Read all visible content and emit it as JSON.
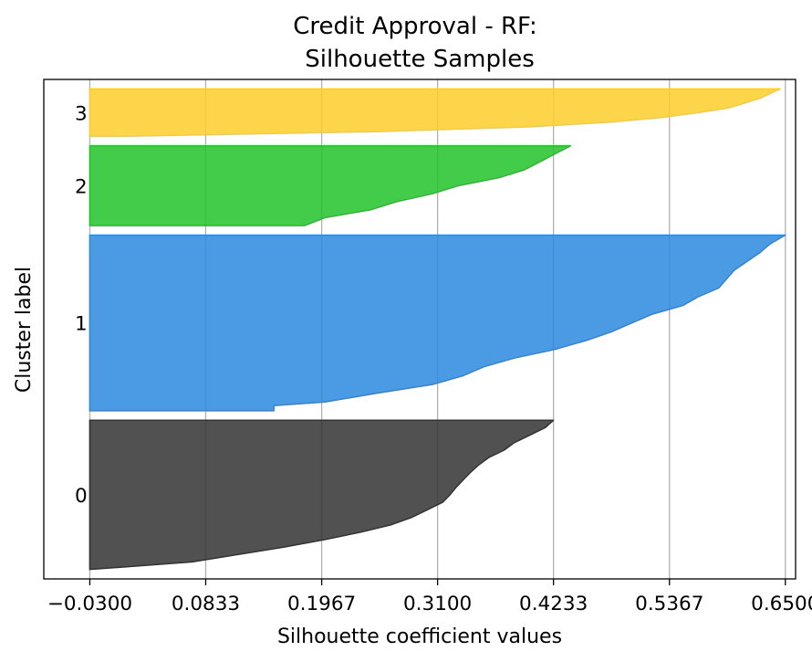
{
  "chart_data": {
    "type": "area",
    "title": "Credit Approval - RF:\nSilhouette Samples",
    "title_lines": [
      "Credit Approval - RF:",
      "Silhouette Samples"
    ],
    "xlabel": "Silhouette coefficient values",
    "ylabel": "Cluster label",
    "xlim": [
      -0.075,
      0.66
    ],
    "xticks": [
      -0.03,
      0.0833,
      0.1967,
      0.31,
      0.4233,
      0.5367,
      0.65
    ],
    "xtick_labels": [
      "−0.0300",
      "0.0833",
      "0.1967",
      "0.3100",
      "0.4233",
      "0.5367",
      "0.6500"
    ],
    "grid": "vertical",
    "clusters": [
      {
        "label": "0",
        "color": "#333333",
        "size": 157,
        "profile": [
          [
            0.0,
            0.4233
          ],
          [
            0.05,
            0.415
          ],
          [
            0.1,
            0.4
          ],
          [
            0.15,
            0.385
          ],
          [
            0.2,
            0.375
          ],
          [
            0.25,
            0.36
          ],
          [
            0.3,
            0.35
          ],
          [
            0.35,
            0.342
          ],
          [
            0.4,
            0.335
          ],
          [
            0.45,
            0.328
          ],
          [
            0.5,
            0.322
          ],
          [
            0.55,
            0.315
          ],
          [
            0.6,
            0.3
          ],
          [
            0.65,
            0.285
          ],
          [
            0.7,
            0.265
          ],
          [
            0.75,
            0.235
          ],
          [
            0.8,
            0.2
          ],
          [
            0.85,
            0.16
          ],
          [
            0.9,
            0.115
          ],
          [
            0.95,
            0.07
          ],
          [
            0.985,
            0.0
          ],
          [
            1.0,
            -0.03
          ]
        ]
      },
      {
        "label": "1",
        "color": "#2a88df",
        "size": 185,
        "profile": [
          [
            0.0,
            0.65
          ],
          [
            0.05,
            0.635
          ],
          [
            0.1,
            0.625
          ],
          [
            0.2,
            0.6
          ],
          [
            0.3,
            0.585
          ],
          [
            0.35,
            0.565
          ],
          [
            0.4,
            0.55
          ],
          [
            0.45,
            0.52
          ],
          [
            0.5,
            0.5
          ],
          [
            0.55,
            0.48
          ],
          [
            0.6,
            0.455
          ],
          [
            0.65,
            0.425
          ],
          [
            0.7,
            0.385
          ],
          [
            0.75,
            0.355
          ],
          [
            0.8,
            0.335
          ],
          [
            0.85,
            0.305
          ],
          [
            0.9,
            0.25
          ],
          [
            0.95,
            0.2
          ],
          [
            0.97,
            0.15
          ],
          [
            1.0,
            0.15
          ]
        ]
      },
      {
        "label": "2",
        "color": "#22c22a",
        "size": 84,
        "profile": [
          [
            0.0,
            0.44
          ],
          [
            0.1,
            0.425
          ],
          [
            0.2,
            0.41
          ],
          [
            0.3,
            0.395
          ],
          [
            0.4,
            0.37
          ],
          [
            0.5,
            0.33
          ],
          [
            0.6,
            0.305
          ],
          [
            0.7,
            0.27
          ],
          [
            0.8,
            0.245
          ],
          [
            0.9,
            0.2
          ],
          [
            1.0,
            0.18
          ]
        ]
      },
      {
        "label": "3",
        "color": "#fdce2a",
        "size": 50,
        "profile": [
          [
            0.0,
            0.645
          ],
          [
            0.1,
            0.635
          ],
          [
            0.2,
            0.625
          ],
          [
            0.3,
            0.61
          ],
          [
            0.4,
            0.595
          ],
          [
            0.5,
            0.565
          ],
          [
            0.6,
            0.53
          ],
          [
            0.7,
            0.48
          ],
          [
            0.8,
            0.4
          ],
          [
            0.9,
            0.25
          ],
          [
            1.0,
            0.0
          ]
        ]
      }
    ]
  }
}
